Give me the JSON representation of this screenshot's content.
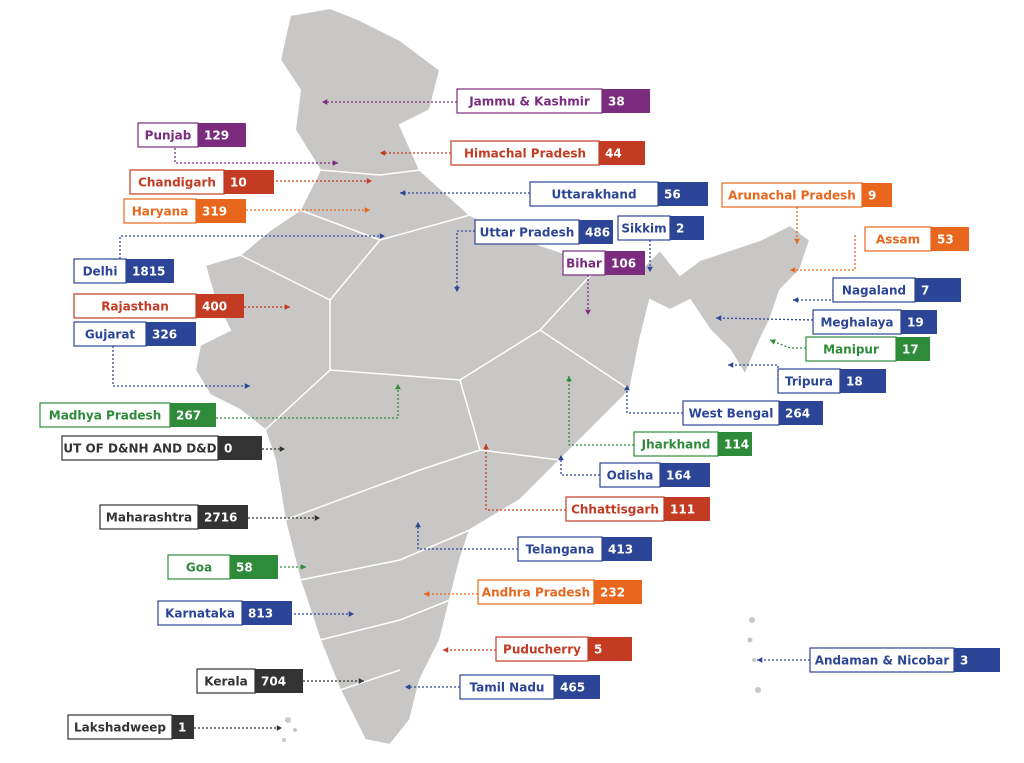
{
  "states": [
    {
      "name": "Jammu & Kashmir",
      "value": 38,
      "color": "#7b2c7f"
    },
    {
      "name": "Punjab",
      "value": 129,
      "color": "#7b2c7f"
    },
    {
      "name": "Himachal Pradesh",
      "value": 44,
      "color": "#c23b22"
    },
    {
      "name": "Chandigarh",
      "value": 10,
      "color": "#c23b22"
    },
    {
      "name": "Haryana",
      "value": 319,
      "color": "#e8671c"
    },
    {
      "name": "Uttarakhand",
      "value": 56,
      "color": "#2d4596"
    },
    {
      "name": "Arunachal Pradesh",
      "value": 9,
      "color": "#e8671c"
    },
    {
      "name": "Uttar Pradesh",
      "value": 486,
      "color": "#2d4596"
    },
    {
      "name": "Sikkim",
      "value": 2,
      "color": "#2d4596"
    },
    {
      "name": "Assam",
      "value": 53,
      "color": "#e8671c"
    },
    {
      "name": "Delhi",
      "value": 1815,
      "color": "#2d4596"
    },
    {
      "name": "Bihar",
      "value": 106,
      "color": "#7b2c7f"
    },
    {
      "name": "Rajasthan",
      "value": 400,
      "color": "#c23b22"
    },
    {
      "name": "Nagaland",
      "value": 7,
      "color": "#2d4596"
    },
    {
      "name": "Meghalaya",
      "value": 19,
      "color": "#2d4596"
    },
    {
      "name": "Gujarat",
      "value": 326,
      "color": "#2d4596"
    },
    {
      "name": "Manipur",
      "value": 17,
      "color": "#2e8b3a"
    },
    {
      "name": "Tripura",
      "value": 18,
      "color": "#2d4596"
    },
    {
      "name": "Madhya Pradesh",
      "value": 267,
      "color": "#2e8b3a"
    },
    {
      "name": "West Bengal",
      "value": 264,
      "color": "#2d4596"
    },
    {
      "name": "UT OF D&NH AND D&D",
      "value": 0,
      "color": "#333333"
    },
    {
      "name": "Jharkhand",
      "value": 114,
      "color": "#2e8b3a"
    },
    {
      "name": "Odisha",
      "value": 164,
      "color": "#2d4596"
    },
    {
      "name": "Maharashtra",
      "value": 2716,
      "color": "#333333"
    },
    {
      "name": "Chhattisgarh",
      "value": 111,
      "color": "#c23b22"
    },
    {
      "name": "Telangana",
      "value": 413,
      "color": "#2d4596"
    },
    {
      "name": "Goa",
      "value": 58,
      "color": "#2e8b3a"
    },
    {
      "name": "Andhra Pradesh",
      "value": 232,
      "color": "#e8671c"
    },
    {
      "name": "Karnataka",
      "value": 813,
      "color": "#2d4596"
    },
    {
      "name": "Puducherry",
      "value": 5,
      "color": "#c23b22"
    },
    {
      "name": "Andaman & Nicobar",
      "value": 3,
      "color": "#2d4596"
    },
    {
      "name": "Kerala",
      "value": 704,
      "color": "#333333"
    },
    {
      "name": "Tamil Nadu",
      "value": 465,
      "color": "#2d4596"
    },
    {
      "name": "Lakshadweep",
      "value": 1,
      "color": "#333333"
    }
  ]
}
